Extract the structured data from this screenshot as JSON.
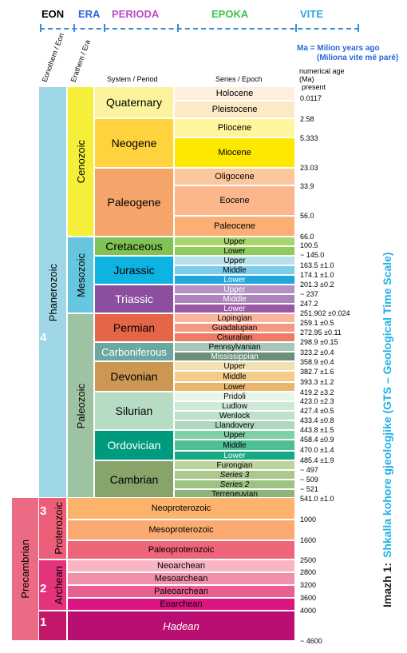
{
  "header": {
    "eon": "EON",
    "era": "ERA",
    "perioda": "PERIODA",
    "epoka": "EPOKA",
    "vite": "VITE"
  },
  "colors": {
    "eon": "#000000",
    "era": "#2a66d9",
    "perioda": "#c04ac6",
    "epoka": "#3cc34a",
    "vite": "#2aa6e0",
    "dash": "#3b8fd6"
  },
  "legend": {
    "line1": "Ma = Milion years ago",
    "line2": "(Miliona vite më parë)"
  },
  "cols": {
    "eonothem": "Eonothem / Eon",
    "erathem": "Erathem / Era",
    "system": "System / Period",
    "series": "Series / Epoch",
    "age_title": "numerical age (Ma)",
    "present": "present"
  },
  "eons": {
    "phanerozoic": "Phanerozoic",
    "precambrian": "Precambrian",
    "proterozoic": "Proterozoic",
    "archean": "Archean"
  },
  "eras": {
    "cenozoic": "Cenozoic",
    "mesozoic": "Mesozoic",
    "paleozoic": "Paleozoic"
  },
  "periods": {
    "quaternary": "Quaternary",
    "neogene": "Neogene",
    "paleogene": "Paleogene",
    "cretaceous": "Cretaceous",
    "jurassic": "Jurassic",
    "triassic": "Triassic",
    "permian": "Permian",
    "carboniferous": "Carboniferous",
    "devonian": "Devonian",
    "silurian": "Silurian",
    "ordovician": "Ordovician",
    "cambrian": "Cambrian"
  },
  "epochs": {
    "holocene": "Holocene",
    "pleistocene": "Pleistocene",
    "pliocene": "Pliocene",
    "miocene": "Miocene",
    "oligocene": "Oligocene",
    "eocene": "Eocene",
    "paleocene": "Paleocene",
    "k_upper": "Upper",
    "k_lower": "Lower",
    "j_upper": "Upper",
    "j_middle": "Middle",
    "j_lower": "Lower",
    "t_upper": "Upper",
    "t_middle": "Middle",
    "t_lower": "Lower",
    "lopingian": "Lopingian",
    "guadalupian": "Guadalupian",
    "cisuralian": "Cisuralian",
    "pennsylvanian": "Pennsylvanian",
    "mississippian": "Mississippian",
    "d_upper": "Upper",
    "d_middle": "Middle",
    "d_lower": "Lower",
    "pridoli": "Pridoli",
    "ludlow": "Ludlow",
    "wenlock": "Wenlock",
    "llandovery": "Llandovery",
    "o_upper": "Upper",
    "o_middle": "Middle",
    "o_lower": "Lower",
    "furongian": "Furongian",
    "series3": "Series 3",
    "series2": "Series 2",
    "terreneuvian": "Terreneuvian"
  },
  "precambrian_units": {
    "neoproterozoic": "Neoproterozoic",
    "mesoproterozoic": "Mesoproterozoic",
    "paleoproterozoic": "Paleoproterozoic",
    "neoarchean": "Neoarchean",
    "mesoarchean": "Mesoarchean",
    "paleoarchean": "Paleoarchean",
    "eoarchean": "Eoarchean",
    "hadean": "Hadean"
  },
  "numbers": {
    "n1": "1",
    "n2": "2",
    "n3": "3",
    "n4": "4"
  },
  "ages": [
    "0.0117",
    "2.58",
    "5.333",
    "23.03",
    "33.9",
    "56.0",
    "66.0",
    "100.5",
    "~ 145.0",
    "163.5 ±1.0",
    "174.1 ±1.0",
    "201.3 ±0.2",
    "~ 237",
    "247.2",
    "251.902 ±0.024",
    "259.1 ±0.5",
    "272.95 ±0.11",
    "298.9 ±0.15",
    "323.2 ±0.4",
    "358.9 ±0.4",
    "382.7 ±1.6",
    "393.3 ±1.2",
    "419.2 ±3.2",
    "423.0 ±2.3",
    "427.4 ±0.5",
    "433.4 ±0.8",
    "443.8 ±1.5",
    "458.4 ±0.9",
    "470.0 ±1.4",
    "485.4 ±1.9",
    "~ 497",
    "~ 509",
    "~ 521",
    "541.0 ±1.0",
    "1000",
    "1600",
    "2500",
    "2800",
    "3200",
    "3600",
    "4000",
    "~ 4600"
  ],
  "caption": {
    "prefix": "Imazh 1:",
    "title": "Shkalla kohore gjeologjike (GTS – Geological Time Scale)"
  }
}
